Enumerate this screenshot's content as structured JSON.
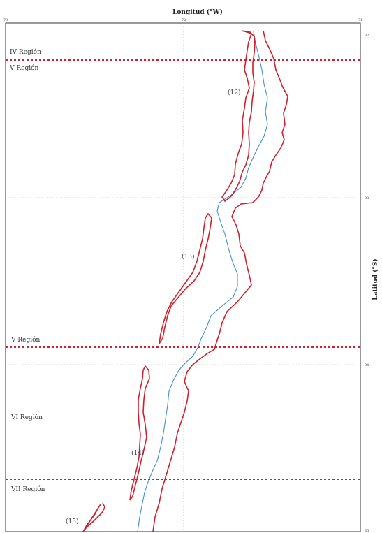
{
  "map": {
    "x_axis_title": "Longitud (°W)",
    "y_axis_title": "Latitud (°S)",
    "x_ticks": [
      "73",
      "72",
      "71"
    ],
    "y_ticks": [
      "32",
      "33",
      "34",
      "35"
    ],
    "regions": [
      "IV Región",
      "V Región",
      "V Región",
      "VI Región",
      "VII Región"
    ],
    "zones": [
      "(12)",
      "(13)",
      "(14)",
      "(15)"
    ],
    "colors": {
      "border": "#d0202e",
      "coast": "#3f8fd6",
      "region_divider": "#d0202e",
      "grid": "#9aa0a6"
    }
  }
}
